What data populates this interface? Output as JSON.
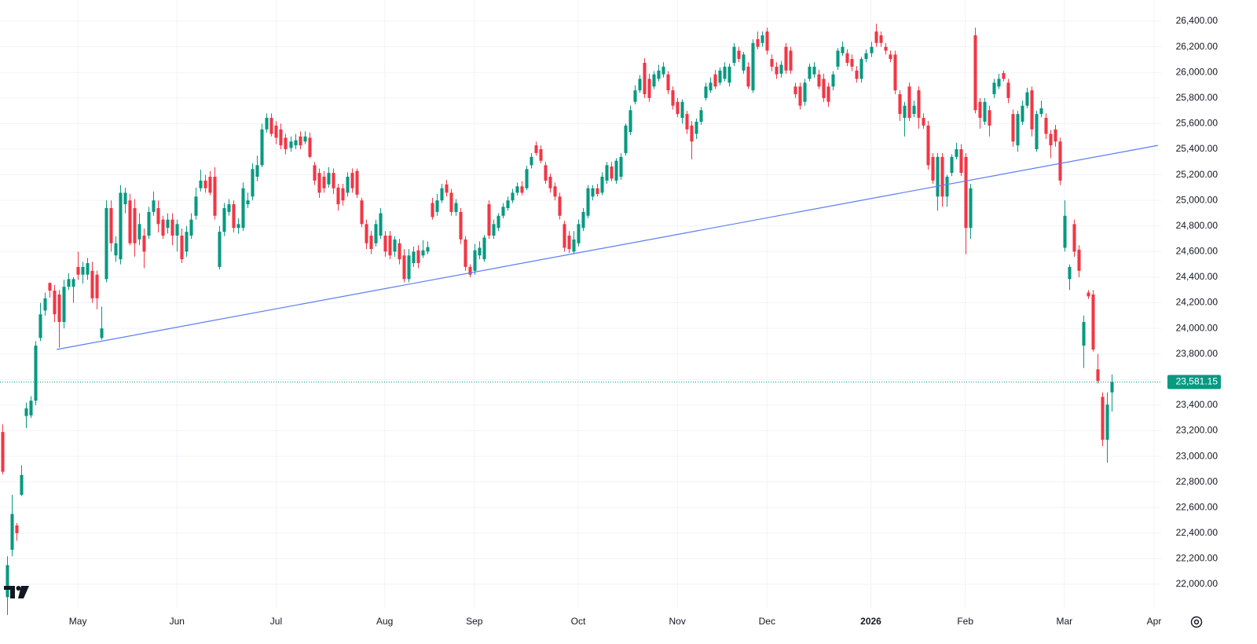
{
  "chart_data": {
    "type": "candlestick",
    "up_color": "#089981",
    "down_color": "#f23645",
    "grid": true,
    "xlim": [
      -0.5,
      245.5
    ],
    "xticks": [
      {
        "value": 16,
        "label": "May"
      },
      {
        "value": 37,
        "label": "Jun"
      },
      {
        "value": 58,
        "label": "Jul"
      },
      {
        "value": 81,
        "label": "Aug"
      },
      {
        "value": 100,
        "label": "Sep"
      },
      {
        "value": 122,
        "label": "Oct"
      },
      {
        "value": 143,
        "label": "Nov"
      },
      {
        "value": 162,
        "label": "Dec"
      },
      {
        "value": 184,
        "label": "2026",
        "bold": true
      },
      {
        "value": 204,
        "label": "Feb"
      },
      {
        "value": 225,
        "label": "Mar"
      },
      {
        "value": 244,
        "label": "Apr"
      }
    ],
    "ylim": [
      21810,
      26566
    ],
    "yticks": [
      {
        "value": 22000,
        "label": "22,000.00"
      },
      {
        "value": 22200,
        "label": "22,200.00"
      },
      {
        "value": 22400,
        "label": "22,400.00"
      },
      {
        "value": 22600,
        "label": "22,600.00"
      },
      {
        "value": 22800,
        "label": "22,800.00"
      },
      {
        "value": 23000,
        "label": "23,000.00"
      },
      {
        "value": 23200,
        "label": "23,200.00"
      },
      {
        "value": 23400,
        "label": "23,400.00"
      },
      {
        "value": 23600,
        "label": "23,600.00"
      },
      {
        "value": 23800,
        "label": "23,800.00"
      },
      {
        "value": 24000,
        "label": "24,000.00"
      },
      {
        "value": 24200,
        "label": "24,200.00"
      },
      {
        "value": 24400,
        "label": "24,400.00"
      },
      {
        "value": 24600,
        "label": "24,600.00"
      },
      {
        "value": 24800,
        "label": "24,800.00"
      },
      {
        "value": 25000,
        "label": "25,000.00"
      },
      {
        "value": 25200,
        "label": "25,200.00"
      },
      {
        "value": 25400,
        "label": "25,400.00"
      },
      {
        "value": 25600,
        "label": "25,600.00"
      },
      {
        "value": 25800,
        "label": "25,800.00"
      },
      {
        "value": 26000,
        "label": "26,000.00"
      },
      {
        "value": 26200,
        "label": "26,200.00"
      },
      {
        "value": 26400,
        "label": "26,400.00"
      }
    ],
    "last_price": {
      "value": 23581.15,
      "label": "23,581.15"
    },
    "trendline": {
      "color": "#5b7cf5",
      "x": [
        11.5,
        244.8
      ],
      "y": [
        23835,
        25430
      ]
    },
    "open": [
      23190,
      21900,
      22270,
      22460,
      22700,
      23315,
      23320,
      23435,
      23925,
      24140,
      24355,
      24295,
      24265,
      24050,
      24325,
      24325,
      24480,
      24420,
      24420,
      24450,
      24420,
      23925,
      24385,
      24940,
      24570,
      24540,
      24970,
      25000,
      24940,
      24695,
      24725,
      24725,
      24910,
      24940,
      24850,
      24785,
      24850,
      24725,
      24725,
      24600,
      24725,
      24880,
      25095,
      25155,
      25185,
      25185,
      24480,
      24755,
      24910,
      24970,
      24785,
      24785,
      24970,
      25030,
      25185,
      25275,
      25555,
      25645,
      25585,
      25555,
      25490,
      25410,
      25430,
      25500,
      25460,
      25490,
      25275,
      25215,
      25185,
      25125,
      25215,
      25100,
      25095,
      25060,
      25215,
      25230,
      25000,
      24815,
      24725,
      24665,
      24725,
      24725,
      24725,
      24600,
      24665,
      24570,
      24385,
      24510,
      24610,
      24570,
      24600,
      24980,
      24910,
      25000,
      25125,
      25060,
      24910,
      24910,
      24695,
      24480,
      24450,
      24570,
      24540,
      24970,
      24725,
      24785,
      24880,
      24940,
      25000,
      25060,
      25110,
      25095,
      25275,
      25430,
      25400,
      25275,
      25185,
      25110,
      25030,
      24815,
      24725,
      24600,
      24665,
      24785,
      24880,
      25030,
      25095,
      25060,
      25155,
      25265,
      25155,
      25185,
      25370,
      25535,
      25770,
      25860,
      26075,
      25950,
      25890,
      25950,
      25985,
      25985,
      25860,
      25770,
      25645,
      25675,
      25585,
      25520,
      25615,
      25800,
      25860,
      25985,
      25920,
      25950,
      25920,
      26075,
      26170,
      26015,
      26045,
      25860,
      26260,
      26230,
      26320,
      26105,
      26045,
      25990,
      26200,
      26170,
      25890,
      25890,
      25770,
      25950,
      25985,
      25985,
      25950,
      25890,
      25890,
      26045,
      26150,
      26150,
      26105,
      26015,
      25950,
      26105,
      26150,
      26320,
      26290,
      26200,
      26140,
      26140,
      25830,
      25645,
      25890,
      25675,
      25860,
      25645,
      25585,
      25340,
      25030,
      25340,
      25030,
      25215,
      25340,
      25400,
      25340,
      24785,
      26290,
      25770,
      25615,
      25705,
      25830,
      25890,
      25995,
      25920,
      25675,
      25430,
      25615,
      25740,
      25860,
      25400,
      25675,
      25645,
      25520,
      25555,
      25460,
      24630,
      24385,
      24815,
      24615,
      23865,
      24280,
      24265,
      23680,
      23465,
      23130,
      23500
    ],
    "high": [
      23250,
      22220,
      22700,
      22480,
      22930,
      23420,
      23470,
      23900,
      24200,
      24280,
      24360,
      24340,
      24300,
      24380,
      24430,
      24400,
      24600,
      24520,
      24550,
      24520,
      24450,
      24170,
      25000,
      25000,
      24720,
      25120,
      25100,
      25050,
      25010,
      24900,
      24780,
      24950,
      25070,
      25000,
      24880,
      24900,
      24900,
      24850,
      24780,
      24800,
      24900,
      25100,
      25240,
      25200,
      25230,
      25260,
      24800,
      24980,
      25010,
      25000,
      24860,
      25140,
      25060,
      25290,
      25350,
      25600,
      25680,
      25680,
      25620,
      25600,
      25520,
      25500,
      25520,
      25540,
      25540,
      25530,
      25300,
      25250,
      25230,
      25260,
      25250,
      25130,
      25130,
      25220,
      25250,
      25250,
      25020,
      24850,
      24760,
      24850,
      24940,
      24760,
      24760,
      24720,
      24700,
      24620,
      24620,
      24640,
      24650,
      24690,
      24680,
      25020,
      25050,
      25130,
      25160,
      25090,
      25010,
      24940,
      24720,
      24500,
      24660,
      24680,
      24730,
      25000,
      24850,
      24900,
      24980,
      25030,
      25090,
      25140,
      25150,
      25270,
      25370,
      25460,
      25430,
      25300,
      25210,
      25140,
      25060,
      24840,
      24760,
      24760,
      24850,
      24940,
      25120,
      25120,
      25130,
      25220,
      25300,
      25300,
      25330,
      25370,
      25600,
      25740,
      25900,
      25980,
      26110,
      25990,
      26010,
      26060,
      26080,
      26010,
      25890,
      25800,
      25790,
      25700,
      25620,
      25640,
      25730,
      25920,
      25960,
      26020,
      26040,
      26080,
      26070,
      26230,
      26200,
      26160,
      26080,
      26260,
      26320,
      26320,
      26350,
      26140,
      26080,
      26090,
      26230,
      26200,
      25920,
      25920,
      25950,
      26070,
      26080,
      26020,
      25990,
      25920,
      26010,
      26190,
      26240,
      26180,
      26140,
      26050,
      26120,
      26180,
      26240,
      26380,
      26320,
      26230,
      26170,
      26170,
      25860,
      25770,
      25920,
      25780,
      25890,
      25680,
      25620,
      25370,
      25370,
      25370,
      25200,
      25360,
      25450,
      25440,
      25370,
      25130,
      26350,
      25800,
      25800,
      25740,
      25950,
      25990,
      26015,
      25950,
      25710,
      25700,
      25780,
      25880,
      25890,
      25700,
      25780,
      25680,
      25550,
      25590,
      25490,
      25000,
      24500,
      24850,
      24650,
      24100,
      24300,
      24300,
      23800,
      23500,
      23500,
      23640
    ],
    "low": [
      22860,
      21760,
      22220,
      22340,
      22690,
      23220,
      23300,
      23400,
      23900,
      24100,
      24240,
      24050,
      23850,
      24000,
      24300,
      24200,
      24380,
      24350,
      24380,
      24200,
      24150,
      23910,
      24360,
      24600,
      24520,
      24500,
      24900,
      24650,
      24560,
      24650,
      24470,
      24700,
      24880,
      24750,
      24700,
      24740,
      24650,
      24600,
      24510,
      24560,
      24700,
      24850,
      25070,
      25060,
      25040,
      24850,
      24460,
      24720,
      24880,
      24750,
      24740,
      24760,
      24940,
      25000,
      25150,
      25260,
      25530,
      25500,
      25440,
      25400,
      25360,
      25380,
      25400,
      25400,
      25440,
      25330,
      25120,
      25020,
      25060,
      25100,
      25050,
      24920,
      24960,
      25030,
      25060,
      25020,
      24790,
      24620,
      24580,
      24640,
      24700,
      24560,
      24540,
      24560,
      24500,
      24360,
      24360,
      24480,
      24470,
      24550,
      24580,
      24850,
      24880,
      24980,
      25030,
      24880,
      24880,
      24660,
      24450,
      24400,
      24420,
      24540,
      24520,
      24700,
      24700,
      24760,
      24860,
      24920,
      24980,
      25040,
      25040,
      25080,
      25250,
      25350,
      25290,
      25130,
      25060,
      25000,
      24850,
      24600,
      24590,
      24580,
      24640,
      24760,
      24860,
      25000,
      25030,
      25040,
      25130,
      25150,
      25130,
      25160,
      25350,
      25510,
      25750,
      25840,
      25800,
      25770,
      25870,
      25930,
      25960,
      25830,
      25710,
      25650,
      25600,
      25520,
      25320,
      25480,
      25590,
      25780,
      25840,
      25870,
      25900,
      25930,
      25890,
      26050,
      26080,
      25990,
      25870,
      25840,
      26180,
      26200,
      26140,
      26010,
      25950,
      25960,
      25990,
      25990,
      25800,
      25710,
      25740,
      25930,
      25960,
      25870,
      25770,
      25730,
      25860,
      26020,
      26130,
      26050,
      26010,
      25920,
      25920,
      26080,
      26120,
      26200,
      26200,
      26140,
      26080,
      25830,
      25620,
      25500,
      25620,
      25650,
      25560,
      25560,
      25240,
      25130,
      24920,
      24950,
      24950,
      25190,
      25320,
      25190,
      24580,
      24700,
      25680,
      25560,
      25590,
      25500,
      25800,
      25870,
      25930,
      25760,
      25420,
      25380,
      25590,
      25720,
      25500,
      25380,
      25650,
      25480,
      25330,
      25420,
      25120,
      24600,
      24300,
      24560,
      24400,
      23690,
      24230,
      23820,
      23570,
      23080,
      22950,
      23350
    ],
    "close": [
      22880,
      22150,
      22550,
      22400,
      22855,
      23375,
      23435,
      23865,
      24110,
      24235,
      24295,
      24110,
      24050,
      24325,
      24385,
      24385,
      24420,
      24480,
      24510,
      24235,
      24235,
      24000,
      24940,
      24665,
      24665,
      25060,
      25060,
      24665,
      24665,
      24815,
      24600,
      24910,
      25000,
      24815,
      24725,
      24850,
      24725,
      24815,
      24540,
      24755,
      24850,
      25030,
      25155,
      25095,
      25060,
      24880,
      24755,
      24940,
      24970,
      24785,
      24815,
      25095,
      25000,
      25245,
      25275,
      25555,
      25645,
      25520,
      25490,
      25430,
      25400,
      25460,
      25470,
      25430,
      25500,
      25340,
      25155,
      25060,
      25095,
      25215,
      25095,
      24970,
      25000,
      25185,
      25095,
      25045,
      24815,
      24665,
      24620,
      24815,
      24900,
      24600,
      24570,
      24695,
      24540,
      24385,
      24570,
      24600,
      24510,
      24610,
      24635,
      24870,
      25000,
      25095,
      25060,
      24910,
      24980,
      24695,
      24480,
      24420,
      24610,
      24630,
      24710,
      24725,
      24815,
      24880,
      24950,
      25000,
      25060,
      25110,
      25060,
      25245,
      25340,
      25370,
      25310,
      25155,
      25095,
      25030,
      24880,
      24630,
      24620,
      24695,
      24815,
      24910,
      25095,
      25095,
      25050,
      25185,
      25275,
      25170,
      25310,
      25340,
      25585,
      25705,
      25860,
      25950,
      25830,
      25800,
      25985,
      26015,
      26045,
      25860,
      25740,
      25675,
      25770,
      25555,
      25460,
      25615,
      25705,
      25890,
      25920,
      25890,
      26015,
      26045,
      26045,
      26200,
      26105,
      26140,
      25890,
      26230,
      26200,
      26290,
      26170,
      26045,
      25985,
      26060,
      26015,
      26015,
      25830,
      25740,
      25920,
      26045,
      26045,
      25890,
      25800,
      25770,
      25985,
      26170,
      26200,
      26075,
      26045,
      25950,
      26105,
      26150,
      26200,
      26230,
      26230,
      26170,
      26105,
      25860,
      25675,
      25740,
      25645,
      25740,
      25645,
      25585,
      25275,
      25155,
      25340,
      25030,
      25185,
      25340,
      25400,
      25215,
      24785,
      25095,
      25705,
      25645,
      25770,
      25585,
      25920,
      25950,
      25950,
      25800,
      25460,
      25675,
      25740,
      25845,
      25555,
      25675,
      25720,
      25520,
      25430,
      25460,
      25155,
      24880,
      24480,
      24600,
      24450,
      24050,
      24250,
      23835,
      23590,
      23130,
      23405,
      23581.15
    ]
  }
}
